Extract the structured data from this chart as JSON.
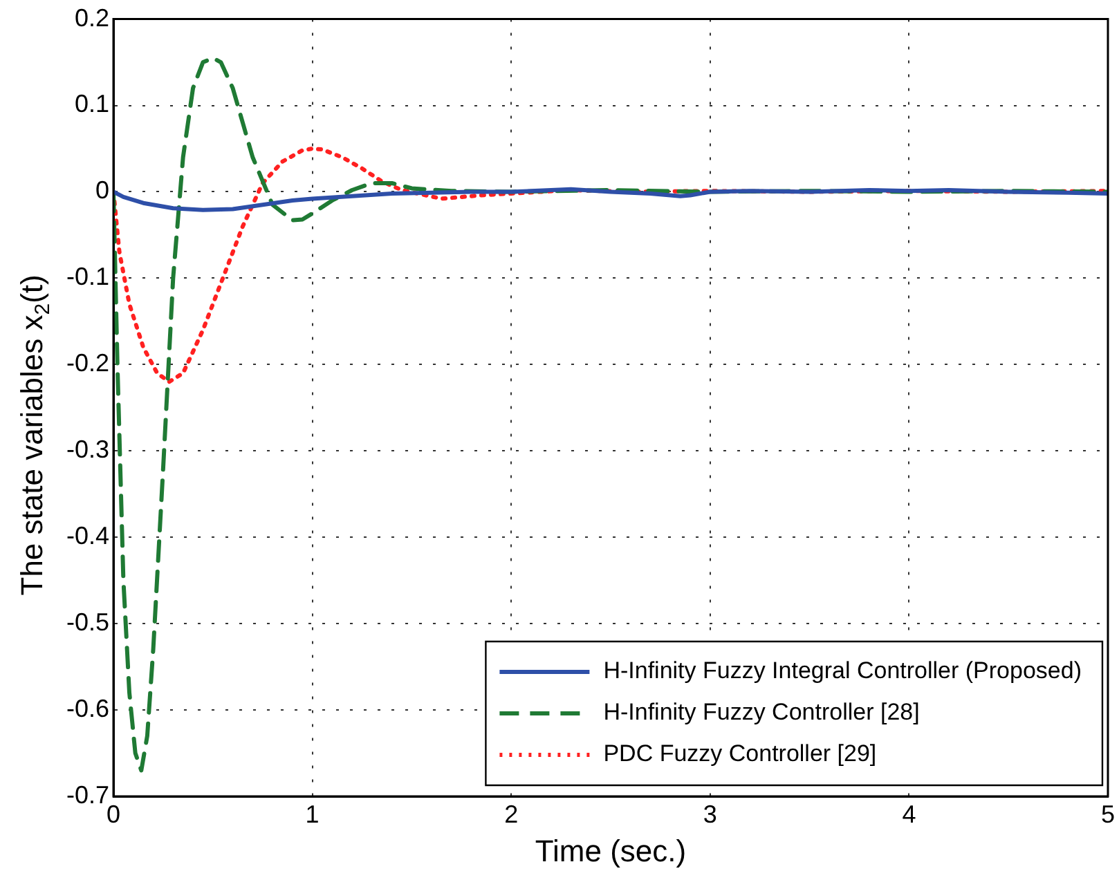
{
  "chart_data": {
    "type": "line",
    "xlabel": "Time (sec.)",
    "ylabel": "The state variables x$_{2}$(t)",
    "xlim": [
      0,
      5
    ],
    "ylim": [
      -0.7,
      0.2
    ],
    "xticks": [
      0,
      1,
      2,
      3,
      4,
      5
    ],
    "yticks": [
      -0.7,
      -0.6,
      -0.5,
      -0.4,
      -0.3,
      -0.2,
      -0.1,
      0,
      0.1,
      0.2
    ],
    "grid": true,
    "legend": "bottom right",
    "series": [
      {
        "name": "H-Infinity Fuzzy Integral Controller (Proposed)",
        "color": "#2e4fa8",
        "line_style": "solid",
        "x": [
          0,
          0.05,
          0.15,
          0.3,
          0.45,
          0.6,
          0.75,
          0.9,
          1.0,
          1.2,
          1.4,
          1.6,
          1.8,
          2.0,
          2.2,
          2.3,
          2.5,
          2.7,
          2.85,
          2.9,
          3.0,
          3.2,
          3.5,
          3.8,
          4.0,
          4.2,
          4.5,
          4.8,
          5.0
        ],
        "values": [
          0,
          -0.006,
          -0.013,
          -0.019,
          -0.021,
          -0.02,
          -0.015,
          -0.01,
          -0.008,
          -0.005,
          -0.002,
          -0.001,
          0,
          0,
          0.002,
          0.003,
          0,
          -0.002,
          -0.005,
          -0.004,
          0,
          0.001,
          0,
          0.002,
          0.001,
          0.002,
          0,
          -0.001,
          -0.002
        ]
      },
      {
        "name": "H-Infinity Fuzzy Controller [28]",
        "color": "#1f7a34",
        "line_style": "dashed",
        "x": [
          0,
          0.02,
          0.05,
          0.08,
          0.11,
          0.14,
          0.17,
          0.2,
          0.25,
          0.3,
          0.35,
          0.4,
          0.45,
          0.5,
          0.54,
          0.6,
          0.65,
          0.7,
          0.8,
          0.9,
          0.95,
          1.0,
          1.1,
          1.2,
          1.3,
          1.4,
          1.5,
          1.7,
          2.0,
          2.5,
          3.0,
          3.5,
          4.0,
          4.5,
          5.0
        ],
        "values": [
          0,
          -0.2,
          -0.45,
          -0.58,
          -0.65,
          -0.67,
          -0.63,
          -0.53,
          -0.32,
          -0.1,
          0.04,
          0.12,
          0.15,
          0.155,
          0.15,
          0.12,
          0.08,
          0.04,
          -0.015,
          -0.033,
          -0.032,
          -0.025,
          -0.01,
          0.002,
          0.01,
          0.01,
          0.004,
          0.001,
          0,
          0.002,
          0,
          0.001,
          0,
          0.001,
          0
        ]
      },
      {
        "name": "PDC Fuzzy Controller [29]",
        "color": "#ff2020",
        "line_style": "dotted",
        "x": [
          0,
          0.03,
          0.08,
          0.15,
          0.22,
          0.28,
          0.35,
          0.45,
          0.55,
          0.65,
          0.75,
          0.85,
          0.95,
          1.0,
          1.05,
          1.15,
          1.25,
          1.35,
          1.45,
          1.55,
          1.65,
          1.75,
          1.85,
          2.0,
          2.3,
          2.6,
          3.0,
          3.5,
          4.0,
          4.5,
          5.0
        ],
        "values": [
          0,
          -0.07,
          -0.13,
          -0.18,
          -0.21,
          -0.22,
          -0.21,
          -0.16,
          -0.1,
          -0.04,
          0.01,
          0.035,
          0.048,
          0.05,
          0.049,
          0.04,
          0.027,
          0.012,
          0.002,
          -0.003,
          -0.008,
          -0.006,
          -0.004,
          -0.002,
          0.002,
          0,
          0.001,
          0,
          0.001,
          0,
          0.001
        ]
      }
    ]
  }
}
